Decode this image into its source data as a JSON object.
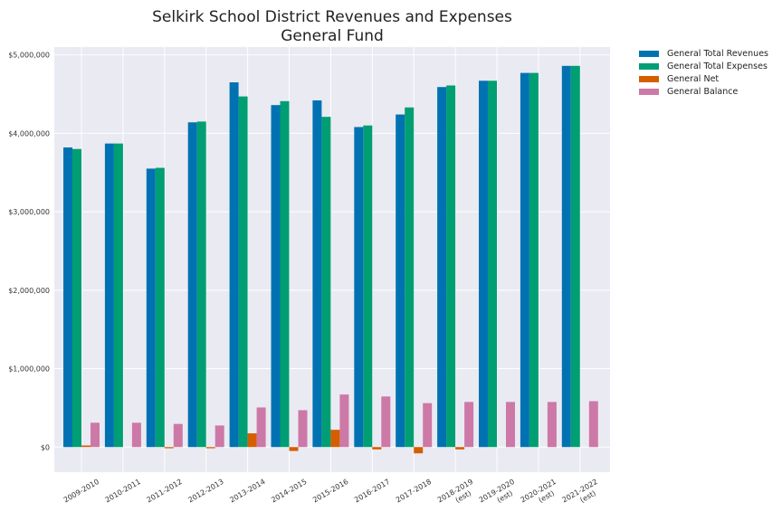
{
  "chart_data": {
    "type": "bar",
    "title_lines": [
      "Selkirk School District Revenues and Expenses",
      "General Fund"
    ],
    "xlabel": "",
    "ylabel": "",
    "ylim": [
      -320000,
      5100000
    ],
    "yticks": [
      0,
      1000000,
      2000000,
      3000000,
      4000000,
      5000000
    ],
    "ytick_labels": [
      "$0",
      "$1,000,000",
      "$2,000,000",
      "$3,000,000",
      "$4,000,000",
      "$5,000,000"
    ],
    "grid": true,
    "legend_position": "outside-top-right",
    "categories": [
      [
        "2009-2010"
      ],
      [
        "2010-2011"
      ],
      [
        "2011-2012"
      ],
      [
        "2012-2013"
      ],
      [
        "2013-2014"
      ],
      [
        "2014-2015"
      ],
      [
        "2015-2016"
      ],
      [
        "2016-2017"
      ],
      [
        "2017-2018"
      ],
      [
        "2018-2019",
        "(est)"
      ],
      [
        "2019-2020",
        "(est)"
      ],
      [
        "2020-2021",
        "(est)"
      ],
      [
        "2021-2022",
        "(est)"
      ]
    ],
    "series": [
      {
        "name": "General Total Revenues",
        "color": "#0072b2",
        "values": [
          3820000,
          3870000,
          3550000,
          4140000,
          4650000,
          4360000,
          4420000,
          4080000,
          4240000,
          4590000,
          4670000,
          4770000,
          4860000
        ]
      },
      {
        "name": "General Total Expenses",
        "color": "#009e73",
        "values": [
          3800000,
          3870000,
          3560000,
          4150000,
          4470000,
          4410000,
          4210000,
          4100000,
          4330000,
          4610000,
          4670000,
          4770000,
          4860000
        ]
      },
      {
        "name": "General Net",
        "color": "#d55e00",
        "values": [
          20000,
          0,
          -15000,
          -15000,
          175000,
          -50000,
          220000,
          -30000,
          -80000,
          -30000,
          0,
          0,
          0
        ]
      },
      {
        "name": "General Balance",
        "color": "#cc79a7",
        "values": [
          310000,
          310000,
          295000,
          275000,
          505000,
          470000,
          670000,
          645000,
          560000,
          575000,
          575000,
          575000,
          585000
        ]
      }
    ]
  }
}
